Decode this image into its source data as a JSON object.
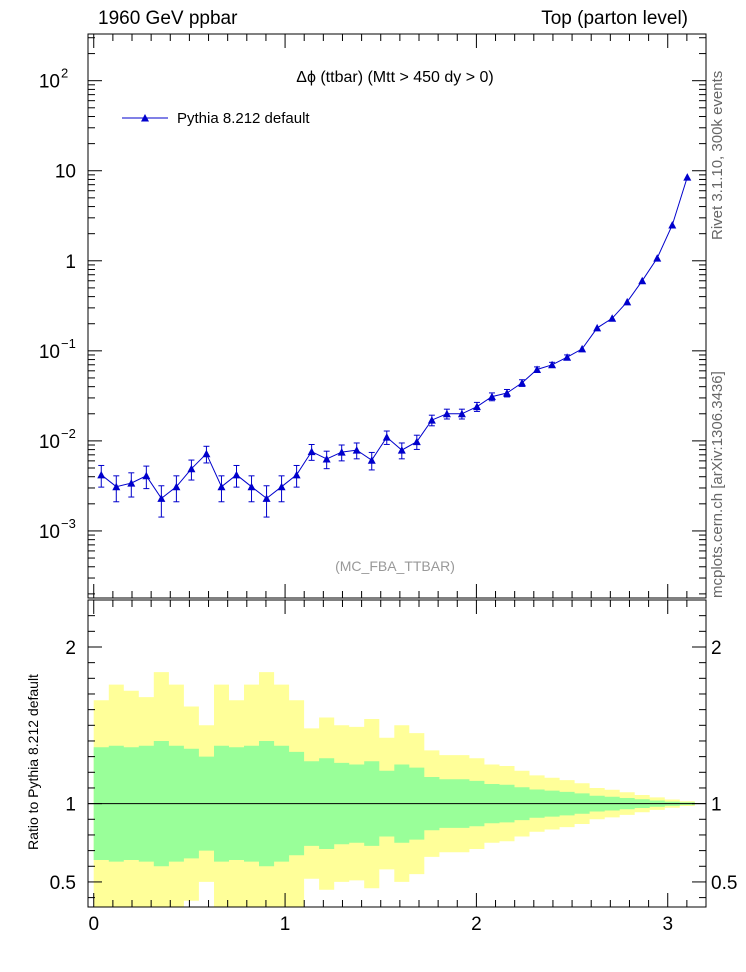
{
  "header": {
    "left": "1960 GeV ppbar",
    "right": "Top (parton level)"
  },
  "side": {
    "rivet": "Rivet 3.1.10,  300k events",
    "mcplots": "mcplots.cern.ch [arXiv:1306.3436]"
  },
  "chart_data": {
    "type": "line",
    "title": "Δϕ (ttbar) (Mtt > 450 dy > 0)",
    "watermark": "(MC_FBA_TTBAR)",
    "yscale": "log",
    "xlim": [
      -0.03,
      3.2
    ],
    "ylim": [
      0.00018,
      330
    ],
    "ytick_labels": [
      "10^-3",
      "10^-2",
      "10^-1",
      "1",
      "10",
      "10^2"
    ],
    "xtick_labels": [
      "0",
      "1",
      "2",
      "3"
    ],
    "legend_position": "top-left",
    "colors": {
      "mc": "#0000cc",
      "band_outer": "#ffff99",
      "band_inner": "#99ff99"
    },
    "series": [
      {
        "name": "Pythia 8.212 default",
        "x": [
          0.0393,
          0.1178,
          0.1963,
          0.2749,
          0.3534,
          0.432,
          0.5105,
          0.589,
          0.6676,
          0.7461,
          0.8247,
          0.9032,
          0.9817,
          1.0603,
          1.1388,
          1.2174,
          1.2959,
          1.3744,
          1.453,
          1.5315,
          1.6101,
          1.6886,
          1.7671,
          1.8457,
          1.9242,
          2.0028,
          2.0813,
          2.1598,
          2.2384,
          2.3169,
          2.3955,
          2.474,
          2.5525,
          2.6311,
          2.7096,
          2.7882,
          2.8667,
          2.9452,
          3.0238,
          3.1023
        ],
        "y": [
          0.0042,
          0.0031,
          0.0034,
          0.0041,
          0.0023,
          0.0031,
          0.0049,
          0.0072,
          0.0031,
          0.0042,
          0.0031,
          0.0023,
          0.0031,
          0.0042,
          0.0076,
          0.0063,
          0.0075,
          0.0079,
          0.0061,
          0.011,
          0.0079,
          0.0098,
          0.017,
          0.02,
          0.02,
          0.024,
          0.031,
          0.034,
          0.044,
          0.062,
          0.07,
          0.085,
          0.105,
          0.18,
          0.23,
          0.35,
          0.6,
          1.07,
          2.5,
          8.5
        ],
        "yerr_rel": [
          0.27,
          0.32,
          0.3,
          0.28,
          0.38,
          0.32,
          0.25,
          0.21,
          0.32,
          0.27,
          0.32,
          0.38,
          0.32,
          0.27,
          0.2,
          0.22,
          0.2,
          0.2,
          0.22,
          0.17,
          0.2,
          0.18,
          0.135,
          0.125,
          0.125,
          0.115,
          0.1,
          0.095,
          0.085,
          0.07,
          0.065,
          0.06,
          0.05,
          0.04,
          0.035,
          0.03,
          0.022,
          0.016,
          0.01,
          0.006
        ]
      }
    ],
    "ratio": {
      "ylabel": "Ratio to Pythia 8.212 default",
      "ylim": [
        0.34,
        2.3
      ],
      "ytick_labels": [
        "0.5",
        "1",
        "2"
      ],
      "band_outer_rel": [
        0.66,
        0.76,
        0.72,
        0.68,
        0.84,
        0.76,
        0.62,
        0.5,
        0.76,
        0.66,
        0.76,
        0.84,
        0.76,
        0.66,
        0.48,
        0.55,
        0.5,
        0.49,
        0.54,
        0.42,
        0.5,
        0.45,
        0.34,
        0.31,
        0.31,
        0.29,
        0.25,
        0.24,
        0.21,
        0.18,
        0.165,
        0.15,
        0.13,
        0.1,
        0.088,
        0.072,
        0.055,
        0.04,
        0.026,
        0.015
      ],
      "band_inner_rel": [
        0.36,
        0.37,
        0.36,
        0.37,
        0.4,
        0.37,
        0.35,
        0.3,
        0.37,
        0.36,
        0.37,
        0.4,
        0.37,
        0.33,
        0.27,
        0.29,
        0.26,
        0.25,
        0.27,
        0.21,
        0.25,
        0.23,
        0.17,
        0.155,
        0.155,
        0.145,
        0.125,
        0.12,
        0.105,
        0.09,
        0.083,
        0.075,
        0.065,
        0.05,
        0.044,
        0.036,
        0.028,
        0.02,
        0.013,
        0.008
      ]
    }
  }
}
